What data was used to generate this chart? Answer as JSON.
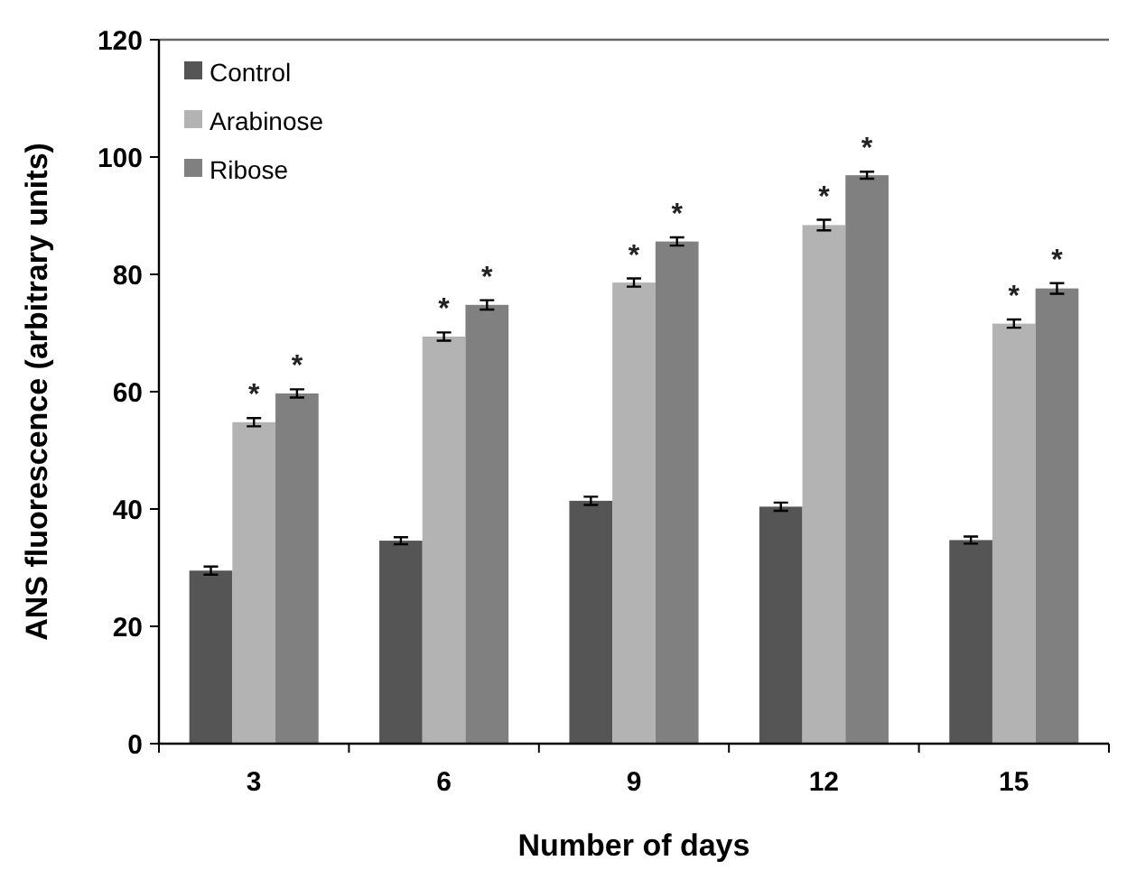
{
  "chart_data": {
    "type": "bar",
    "xlabel": "Number of days",
    "ylabel": "ANS fluorescence (arbitrary units)",
    "categories": [
      "3",
      "6",
      "9",
      "12",
      "15"
    ],
    "series": [
      {
        "name": "Control",
        "color": "#555555",
        "values": [
          29.5,
          34.6,
          41.4,
          40.4,
          34.7
        ],
        "errors": [
          0.7,
          0.6,
          0.7,
          0.7,
          0.6
        ]
      },
      {
        "name": "Arabinose",
        "color": "#b3b3b3",
        "values": [
          54.8,
          69.4,
          78.6,
          88.4,
          71.6
        ],
        "errors": [
          0.7,
          0.7,
          0.7,
          0.9,
          0.7
        ],
        "value_labels": [
          "*",
          "*",
          "*",
          "*",
          "*"
        ]
      },
      {
        "name": "Ribose",
        "color": "#808080",
        "values": [
          59.7,
          74.8,
          85.6,
          96.9,
          77.6
        ],
        "errors": [
          0.7,
          0.8,
          0.7,
          0.6,
          0.9
        ],
        "value_labels": [
          "*",
          "*",
          "*",
          "*",
          "*"
        ]
      }
    ],
    "ylim": [
      0,
      120
    ],
    "yticks": [
      0,
      20,
      40,
      60,
      80,
      100,
      120
    ],
    "grid": false,
    "legend": "top left"
  }
}
